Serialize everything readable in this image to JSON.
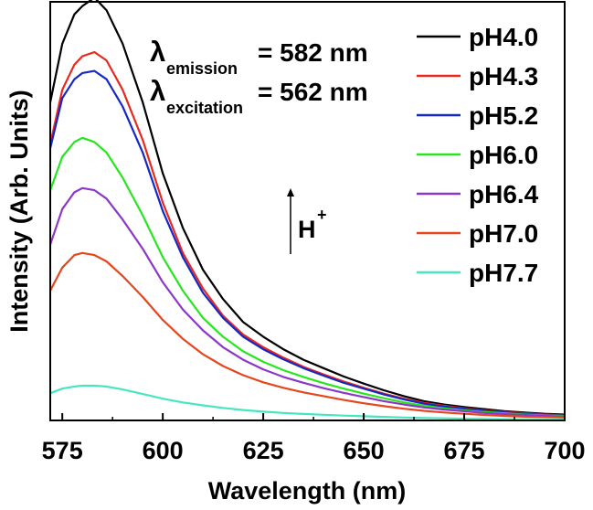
{
  "chart_data": {
    "type": "line",
    "title": "",
    "xlabel": "Wavelength (nm)",
    "ylabel": "Intensity (Arb. Units)",
    "xlim": [
      572,
      700
    ],
    "ylim": [
      0,
      100
    ],
    "xticks": [
      575,
      600,
      625,
      650,
      675,
      700
    ],
    "y_tick_labels_shown": false,
    "grid": false,
    "legend_position": "top-right",
    "annotations": {
      "emission_symbol": "λ",
      "emission_subscript": "emission",
      "emission_value": "= 582 nm",
      "excitation_symbol": "λ",
      "excitation_subscript": "excitation",
      "excitation_value": "= 562 nm",
      "arrow_label": "H",
      "arrow_label_superscript": "+"
    },
    "x": [
      572,
      575,
      578,
      580,
      583,
      586,
      590,
      595,
      600,
      605,
      610,
      615,
      620,
      625,
      630,
      635,
      640,
      645,
      650,
      655,
      660,
      665,
      670,
      675,
      680,
      685,
      690,
      695,
      700
    ],
    "series": [
      {
        "name": "pH4.0",
        "color": "#000000",
        "values": [
          76,
          90,
          97,
          99,
          101,
          98,
          90,
          76,
          59,
          46,
          36,
          29,
          23.5,
          20,
          17,
          14.5,
          12.5,
          10.5,
          8.8,
          7.2,
          5.8,
          4.6,
          3.8,
          3.2,
          2.7,
          2.2,
          1.9,
          1.6,
          1.4
        ]
      },
      {
        "name": "pH4.3",
        "color": "#e8281e",
        "values": [
          66,
          79,
          85,
          87,
          88,
          86,
          79,
          67,
          52,
          40,
          31.5,
          25,
          20.5,
          17.5,
          15,
          12.8,
          11,
          9.3,
          7.8,
          6.4,
          5.2,
          4.2,
          3.5,
          2.9,
          2.4,
          2,
          1.7,
          1.4,
          1.2
        ]
      },
      {
        "name": "pH5.2",
        "color": "#1428c8",
        "values": [
          65,
          77,
          81.5,
          83,
          83.5,
          81.5,
          75,
          64,
          50,
          39,
          30.5,
          24.5,
          20,
          17,
          14.6,
          12.5,
          10.7,
          9,
          7.6,
          6.2,
          5,
          4,
          3.3,
          2.8,
          2.3,
          1.9,
          1.6,
          1.3,
          1.1
        ]
      },
      {
        "name": "pH6.0",
        "color": "#28e61e",
        "values": [
          55,
          63,
          66.5,
          67.5,
          66.5,
          64,
          58,
          49,
          39,
          31,
          24.5,
          20,
          16.5,
          14,
          12,
          10.4,
          8.9,
          7.6,
          6.4,
          5.3,
          4.3,
          3.5,
          2.9,
          2.4,
          2,
          1.7,
          1.4,
          1.2,
          1
        ]
      },
      {
        "name": "pH6.4",
        "color": "#8c37c8",
        "values": [
          42,
          50.5,
          54.5,
          55.5,
          55,
          53,
          48,
          41,
          33,
          26.5,
          21.5,
          17.5,
          14.5,
          12.2,
          10.4,
          9,
          7.7,
          6.6,
          5.6,
          4.6,
          3.8,
          3.1,
          2.6,
          2.2,
          1.8,
          1.5,
          1.3,
          1.1,
          0.9
        ]
      },
      {
        "name": "pH7.0",
        "color": "#e6461e",
        "values": [
          31,
          36.5,
          39.5,
          40,
          39.5,
          38,
          34.5,
          29.5,
          24,
          19.5,
          15.8,
          13,
          10.8,
          9.1,
          7.8,
          6.7,
          5.8,
          4.9,
          4.1,
          3.4,
          2.8,
          2.3,
          1.9,
          1.6,
          1.3,
          1.1,
          0.9,
          0.8,
          0.7
        ]
      },
      {
        "name": "pH7.7",
        "color": "#46e6be",
        "values": [
          6.5,
          7.6,
          8.1,
          8.3,
          8.3,
          8.1,
          7.4,
          6.3,
          5.2,
          4.3,
          3.6,
          3,
          2.5,
          2.1,
          1.8,
          1.55,
          1.35,
          1.15,
          1,
          0.85,
          0.7,
          0.6,
          0.5,
          0.42,
          0.36,
          0.3,
          0.26,
          0.22,
          0.2
        ]
      }
    ]
  }
}
